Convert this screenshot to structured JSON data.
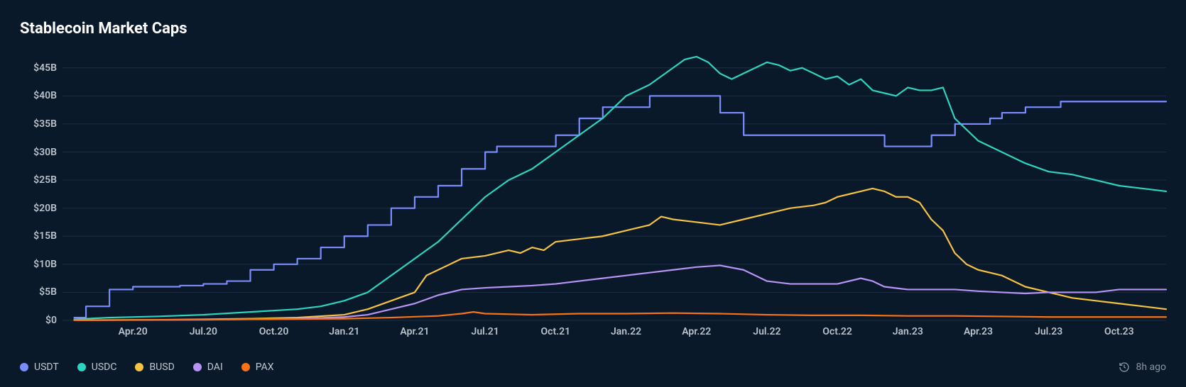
{
  "chart": {
    "title": "Stablecoin Market Caps",
    "type": "line",
    "background_color": "#0a1929",
    "grid_color": "#1c2e44",
    "text_color": "#b9c2cc",
    "title_color": "#ffffff",
    "title_fontsize": 22,
    "label_fontsize": 14,
    "line_width": 2.2,
    "x": {
      "min": 0,
      "max": 47,
      "ticks": [
        3,
        6,
        9,
        12,
        15,
        18,
        21,
        24,
        27,
        30,
        33,
        36,
        39,
        42,
        45
      ],
      "tick_labels": [
        "Apr.20",
        "Jul.20",
        "Oct.20",
        "Jan.21",
        "Apr.21",
        "Jul.21",
        "Oct.21",
        "Jan.22",
        "Apr.22",
        "Jul.22",
        "Oct.22",
        "Jan.23",
        "Apr.23",
        "Jul.23",
        "Oct.23"
      ]
    },
    "y": {
      "min": 0,
      "max": 48,
      "ticks": [
        0,
        5,
        10,
        15,
        20,
        25,
        30,
        35,
        40,
        45
      ],
      "tick_labels": [
        "$0",
        "$5B",
        "$10B",
        "$15B",
        "$20B",
        "$25B",
        "$30B",
        "$35B",
        "$40B",
        "$45B"
      ]
    },
    "legend_position": "bottom-left",
    "timestamp": "8h ago",
    "series": [
      {
        "name": "USDT",
        "color": "#7b8cff",
        "step": true,
        "data": [
          [
            0.5,
            0.5
          ],
          [
            1,
            2.5
          ],
          [
            2,
            5.5
          ],
          [
            3,
            6
          ],
          [
            4,
            6
          ],
          [
            5,
            6.2
          ],
          [
            6,
            6.5
          ],
          [
            7,
            7
          ],
          [
            8,
            9
          ],
          [
            9,
            10
          ],
          [
            10,
            11
          ],
          [
            11,
            13
          ],
          [
            12,
            15
          ],
          [
            13,
            17
          ],
          [
            14,
            20
          ],
          [
            15,
            22
          ],
          [
            16,
            24
          ],
          [
            17,
            27
          ],
          [
            18,
            30
          ],
          [
            18.5,
            31
          ],
          [
            21,
            31
          ],
          [
            21.01,
            33
          ],
          [
            22,
            33
          ],
          [
            22.01,
            36
          ],
          [
            23,
            36
          ],
          [
            23.01,
            38
          ],
          [
            25,
            38
          ],
          [
            25.01,
            40
          ],
          [
            28,
            40
          ],
          [
            28.01,
            37
          ],
          [
            29,
            37
          ],
          [
            29.01,
            33
          ],
          [
            35,
            33
          ],
          [
            35.01,
            31
          ],
          [
            37,
            31
          ],
          [
            37.01,
            33
          ],
          [
            38,
            33
          ],
          [
            38.01,
            35
          ],
          [
            39,
            35
          ],
          [
            39.5,
            36
          ],
          [
            40,
            36
          ],
          [
            40.01,
            37
          ],
          [
            41,
            37
          ],
          [
            41.01,
            38
          ],
          [
            42.5,
            38
          ],
          [
            42.51,
            39
          ],
          [
            47,
            39
          ]
        ]
      },
      {
        "name": "USDC",
        "color": "#2dd4bf",
        "step": false,
        "data": [
          [
            0.5,
            0.2
          ],
          [
            2,
            0.5
          ],
          [
            4,
            0.7
          ],
          [
            6,
            1
          ],
          [
            8,
            1.5
          ],
          [
            10,
            2
          ],
          [
            11,
            2.5
          ],
          [
            12,
            3.5
          ],
          [
            13,
            5
          ],
          [
            14,
            8
          ],
          [
            15,
            11
          ],
          [
            16,
            14
          ],
          [
            17,
            18
          ],
          [
            18,
            22
          ],
          [
            19,
            25
          ],
          [
            20,
            27
          ],
          [
            21,
            30
          ],
          [
            22,
            33
          ],
          [
            23,
            36
          ],
          [
            24,
            40
          ],
          [
            25,
            42
          ],
          [
            26,
            45
          ],
          [
            26.5,
            46.5
          ],
          [
            27,
            47
          ],
          [
            27.5,
            46
          ],
          [
            28,
            44
          ],
          [
            28.5,
            43
          ],
          [
            29,
            44
          ],
          [
            29.5,
            45
          ],
          [
            30,
            46
          ],
          [
            30.5,
            45.5
          ],
          [
            31,
            44.5
          ],
          [
            31.5,
            45
          ],
          [
            32,
            44
          ],
          [
            32.5,
            43
          ],
          [
            33,
            43.5
          ],
          [
            33.5,
            42
          ],
          [
            34,
            43
          ],
          [
            34.5,
            41
          ],
          [
            35,
            40.5
          ],
          [
            35.5,
            40
          ],
          [
            36,
            41.5
          ],
          [
            36.5,
            41
          ],
          [
            37,
            41
          ],
          [
            37.5,
            41.5
          ],
          [
            38,
            36
          ],
          [
            38.5,
            34
          ],
          [
            39,
            32
          ],
          [
            40,
            30
          ],
          [
            41,
            28
          ],
          [
            42,
            26.5
          ],
          [
            43,
            26
          ],
          [
            44,
            25
          ],
          [
            45,
            24
          ],
          [
            46,
            23.5
          ],
          [
            47,
            23
          ]
        ]
      },
      {
        "name": "BUSD",
        "color": "#f5c242",
        "step": false,
        "data": [
          [
            0.5,
            0.05
          ],
          [
            4,
            0.1
          ],
          [
            8,
            0.3
          ],
          [
            10,
            0.5
          ],
          [
            12,
            1
          ],
          [
            13,
            2
          ],
          [
            14,
            3.5
          ],
          [
            15,
            5
          ],
          [
            15.5,
            8
          ],
          [
            16,
            9
          ],
          [
            17,
            11
          ],
          [
            18,
            11.5
          ],
          [
            19,
            12.5
          ],
          [
            19.5,
            12
          ],
          [
            20,
            13
          ],
          [
            20.5,
            12.5
          ],
          [
            21,
            14
          ],
          [
            22,
            14.5
          ],
          [
            23,
            15
          ],
          [
            24,
            16
          ],
          [
            25,
            17
          ],
          [
            25.5,
            18.5
          ],
          [
            26,
            18
          ],
          [
            27,
            17.5
          ],
          [
            28,
            17
          ],
          [
            29,
            18
          ],
          [
            30,
            19
          ],
          [
            31,
            20
          ],
          [
            32,
            20.5
          ],
          [
            32.5,
            21
          ],
          [
            33,
            22
          ],
          [
            33.5,
            22.5
          ],
          [
            34,
            23
          ],
          [
            34.5,
            23.5
          ],
          [
            35,
            23
          ],
          [
            35.5,
            22
          ],
          [
            36,
            22
          ],
          [
            36.5,
            21
          ],
          [
            37,
            18
          ],
          [
            37.5,
            16
          ],
          [
            38,
            12
          ],
          [
            38.5,
            10
          ],
          [
            39,
            9
          ],
          [
            40,
            8
          ],
          [
            41,
            6
          ],
          [
            42,
            5
          ],
          [
            43,
            4
          ],
          [
            44,
            3.5
          ],
          [
            45,
            3
          ],
          [
            46,
            2.5
          ],
          [
            47,
            2
          ]
        ]
      },
      {
        "name": "DAI",
        "color": "#b794f4",
        "step": false,
        "data": [
          [
            0.5,
            0.02
          ],
          [
            6,
            0.1
          ],
          [
            10,
            0.3
          ],
          [
            12,
            0.6
          ],
          [
            13,
            1
          ],
          [
            14,
            2
          ],
          [
            15,
            3
          ],
          [
            16,
            4.5
          ],
          [
            17,
            5.5
          ],
          [
            18,
            5.8
          ],
          [
            19,
            6
          ],
          [
            20,
            6.2
          ],
          [
            21,
            6.5
          ],
          [
            22,
            7
          ],
          [
            23,
            7.5
          ],
          [
            24,
            8
          ],
          [
            25,
            8.5
          ],
          [
            26,
            9
          ],
          [
            27,
            9.5
          ],
          [
            28,
            9.8
          ],
          [
            29,
            9
          ],
          [
            29.5,
            8
          ],
          [
            30,
            7
          ],
          [
            31,
            6.5
          ],
          [
            32,
            6.5
          ],
          [
            33,
            6.5
          ],
          [
            34,
            7.5
          ],
          [
            34.5,
            7
          ],
          [
            35,
            6
          ],
          [
            36,
            5.5
          ],
          [
            37,
            5.5
          ],
          [
            38,
            5.5
          ],
          [
            39,
            5.2
          ],
          [
            40,
            5
          ],
          [
            41,
            4.8
          ],
          [
            42,
            5
          ],
          [
            43,
            5
          ],
          [
            44,
            5
          ],
          [
            45,
            5.5
          ],
          [
            46,
            5.5
          ],
          [
            47,
            5.5
          ]
        ]
      },
      {
        "name": "PAX",
        "color": "#f97316",
        "step": false,
        "data": [
          [
            0.5,
            0.02
          ],
          [
            4,
            0.1
          ],
          [
            8,
            0.2
          ],
          [
            12,
            0.3
          ],
          [
            14,
            0.5
          ],
          [
            16,
            0.8
          ],
          [
            17,
            1.2
          ],
          [
            17.5,
            1.5
          ],
          [
            18,
            1.2
          ],
          [
            20,
            1
          ],
          [
            22,
            1.2
          ],
          [
            24,
            1.2
          ],
          [
            26,
            1.3
          ],
          [
            28,
            1.2
          ],
          [
            30,
            1
          ],
          [
            32,
            0.9
          ],
          [
            34,
            0.9
          ],
          [
            36,
            0.8
          ],
          [
            38,
            0.8
          ],
          [
            40,
            0.7
          ],
          [
            42,
            0.6
          ],
          [
            44,
            0.6
          ],
          [
            46,
            0.6
          ],
          [
            47,
            0.6
          ]
        ]
      }
    ]
  }
}
